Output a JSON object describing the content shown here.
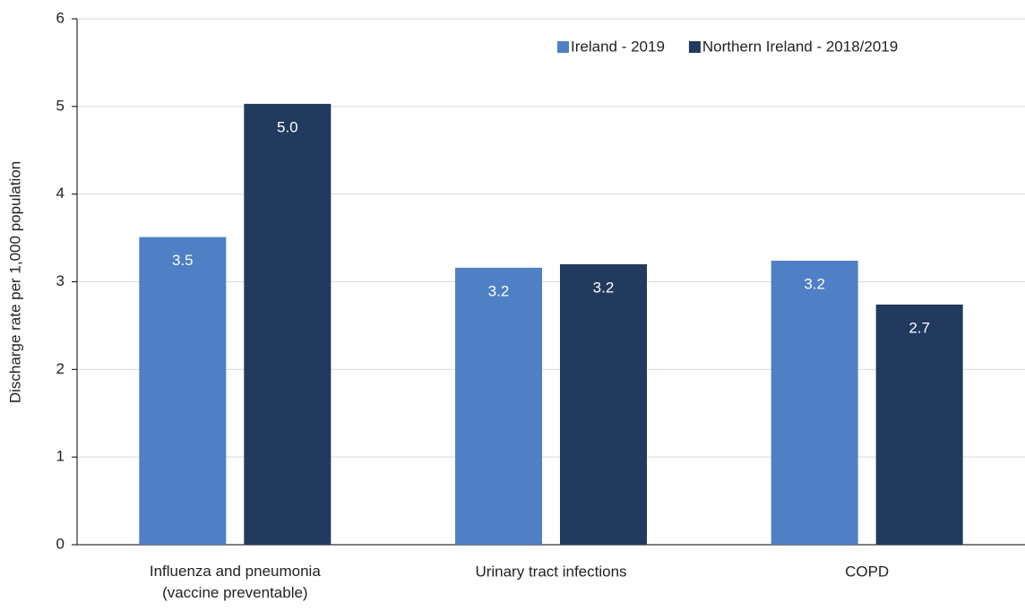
{
  "chart_data": {
    "type": "bar",
    "y_label": "Discharge rate per 1,000 population",
    "categories": [
      "Influenza and pneumonia\n(vaccine preventable)",
      "Urinary tract infections",
      "COPD"
    ],
    "series": [
      {
        "name": "Ireland - 2019",
        "color": "#4f7fc5",
        "values": [
          3.51,
          3.16,
          3.24
        ],
        "value_labels": [
          "3.5",
          "3.2",
          "3.2"
        ]
      },
      {
        "name": "Northern Ireland - 2018/2019",
        "color": "#213a5e",
        "values": [
          5.03,
          3.2,
          2.74
        ],
        "value_labels": [
          "5.0",
          "3.2",
          "2.7"
        ]
      }
    ],
    "ylim": [
      0,
      6
    ],
    "yticks": [
      0,
      1,
      2,
      3,
      4,
      5,
      6
    ],
    "grid": true,
    "legend": "top-right"
  }
}
